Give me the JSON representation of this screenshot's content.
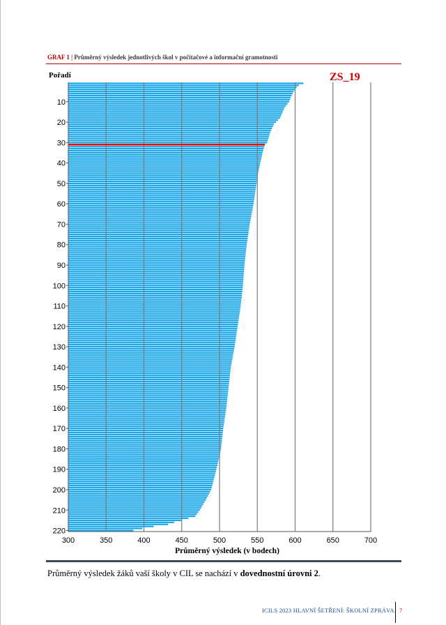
{
  "header": {
    "label": "GRAF 1",
    "separator": " | ",
    "title": "Průměrný výsledek jednotlivých škol v počítačové a informační gramotnosti"
  },
  "school_code": "ZS_19",
  "chart_data": {
    "type": "bar",
    "orientation": "horizontal",
    "ylabel": "Pořadí",
    "xlabel": "Průměrný výsledek (v bodech)",
    "xlim": [
      300,
      700
    ],
    "x_ticks": [
      300,
      350,
      400,
      450,
      500,
      550,
      600,
      650,
      700
    ],
    "y_ticks": [
      10,
      20,
      30,
      40,
      50,
      60,
      70,
      80,
      90,
      100,
      110,
      120,
      130,
      140,
      150,
      160,
      170,
      180,
      190,
      200,
      210,
      220
    ],
    "n_schools": 220,
    "grid": "vertical",
    "bar_color": "#1aa7e8",
    "highlight_color": "#e01010",
    "highlight_rank": 31,
    "highlight_value": 560,
    "knots": [
      [
        1,
        611
      ],
      [
        2,
        605
      ],
      [
        3,
        602
      ],
      [
        5,
        598
      ],
      [
        8,
        594
      ],
      [
        10,
        592
      ],
      [
        13,
        586
      ],
      [
        18,
        580
      ],
      [
        21,
        572
      ],
      [
        25,
        567
      ],
      [
        30,
        563
      ],
      [
        31,
        560
      ],
      [
        35,
        557
      ],
      [
        40,
        554
      ],
      [
        45,
        551
      ],
      [
        50,
        549
      ],
      [
        60,
        545
      ],
      [
        70,
        540
      ],
      [
        80,
        536
      ],
      [
        90,
        533
      ],
      [
        100,
        531
      ],
      [
        110,
        528
      ],
      [
        120,
        524
      ],
      [
        130,
        520
      ],
      [
        140,
        515
      ],
      [
        150,
        512
      ],
      [
        160,
        509
      ],
      [
        170,
        505
      ],
      [
        180,
        502
      ],
      [
        190,
        496
      ],
      [
        200,
        489
      ],
      [
        205,
        482
      ],
      [
        210,
        474
      ],
      [
        213,
        468
      ],
      [
        215,
        450
      ],
      [
        216,
        440
      ],
      [
        217,
        432
      ],
      [
        218,
        413
      ],
      [
        219,
        398
      ],
      [
        220,
        386
      ]
    ]
  },
  "summary": {
    "text_before": "Průměrný výsledek žáků vaší školy v CIL se nachází v ",
    "text_bold": "dovednostní úrovni 2",
    "text_after": "."
  },
  "footer": {
    "text": "ICILS 2023 HLAVNÍ ŠETŘENÍ: ŠKOLNÍ ZPRÁVA",
    "page": "7"
  }
}
